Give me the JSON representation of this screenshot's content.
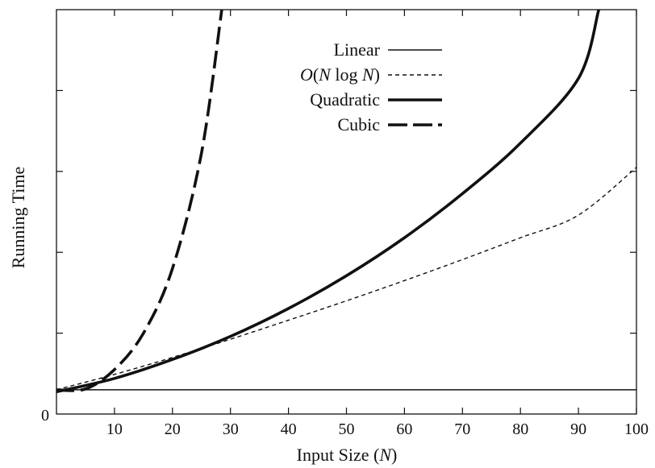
{
  "chart_data": {
    "type": "line",
    "title": "",
    "xlabel": "Input Size (N)",
    "ylabel": "Running Time",
    "xlim": [
      0,
      100
    ],
    "ylim": [
      0,
      10
    ],
    "x_ticks": [
      10,
      20,
      30,
      40,
      50,
      60,
      70,
      80,
      90,
      100
    ],
    "y_ticks": [
      2,
      4,
      6,
      8
    ],
    "y_tick_labels": {
      "0": "0"
    },
    "grid": false,
    "legend_position": "top-center",
    "series": [
      {
        "name": "Linear",
        "style": "solid-thin",
        "x": [
          0,
          10,
          20,
          30,
          40,
          50,
          60,
          70,
          80,
          90,
          100
        ],
        "y": [
          0.6,
          0.6,
          0.6,
          0.6,
          0.6,
          0.6,
          0.6,
          0.6,
          0.6,
          0.6,
          0.6
        ]
      },
      {
        "name": "O(N log N)",
        "style": "dashed-thin",
        "x": [
          0,
          10,
          20,
          30,
          40,
          50,
          60,
          70,
          80,
          90,
          100
        ],
        "y": [
          0.6,
          0.98,
          1.4,
          1.85,
          2.32,
          2.8,
          3.3,
          3.82,
          4.36,
          4.92,
          6.1
        ]
      },
      {
        "name": "Quadratic",
        "style": "solid-thick",
        "x": [
          0,
          10,
          20,
          30,
          40,
          50,
          60,
          70,
          80,
          90,
          93.5
        ],
        "y": [
          0.55,
          0.88,
          1.35,
          1.92,
          2.61,
          3.42,
          4.36,
          5.45,
          6.7,
          8.3,
          10.0
        ]
      },
      {
        "name": "Cubic",
        "style": "dashed-thick",
        "x": [
          0,
          5,
          10,
          15,
          20,
          25,
          28.5
        ],
        "y": [
          0.6,
          0.62,
          1.1,
          2.0,
          3.6,
          6.45,
          10.0
        ]
      }
    ]
  },
  "legend": {
    "items": [
      {
        "label": "Linear"
      },
      {
        "label": "O(N log N)"
      },
      {
        "label": "Quadratic"
      },
      {
        "label": "Cubic"
      }
    ]
  },
  "axes": {
    "x_title": "Input Size (N)",
    "y_title": "Running Time",
    "origin_label": "0"
  }
}
